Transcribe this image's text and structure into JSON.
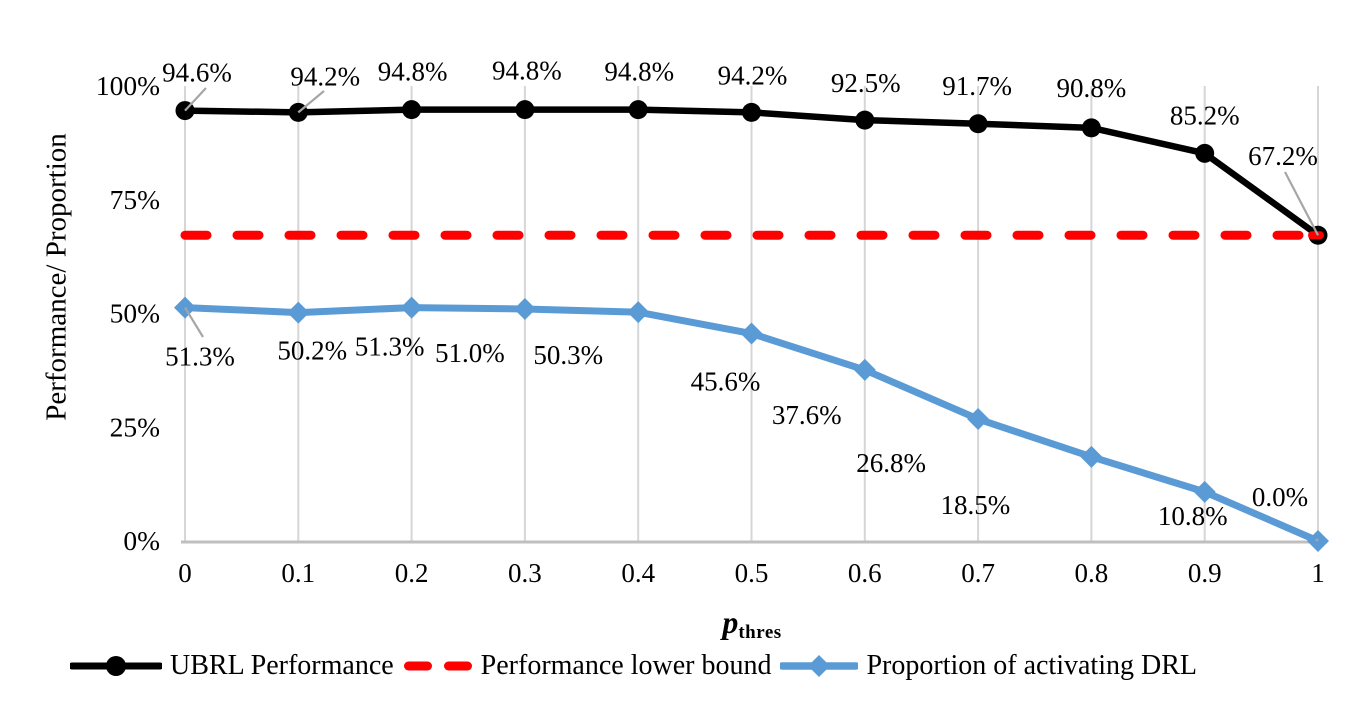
{
  "chart_data": {
    "type": "line",
    "title": "",
    "x": [
      0,
      0.1,
      0.2,
      0.3,
      0.4,
      0.5,
      0.6,
      0.7,
      0.8,
      0.9,
      1
    ],
    "x_tick_labels": [
      "0",
      "0.1",
      "0.2",
      "0.3",
      "0.4",
      "0.5",
      "0.6",
      "0.7",
      "0.8",
      "0.9",
      "1"
    ],
    "y_ticks": [
      0,
      25,
      50,
      75,
      100
    ],
    "y_tick_labels": [
      "0%",
      "25%",
      "50%",
      "75%",
      "100%"
    ],
    "ylim": [
      0,
      100
    ],
    "xlabel_main": "p",
    "xlabel_sub": "thres",
    "ylabel": "Performance/ Proportion",
    "grid": "vertical-only",
    "legend_position": "bottom",
    "series": [
      {
        "name": "UBRL Performance",
        "kind": "line",
        "color": "#000000",
        "marker": "circle",
        "values": [
          94.6,
          94.2,
          94.8,
          94.8,
          94.8,
          94.2,
          92.5,
          91.7,
          90.8,
          85.2,
          67.2
        ],
        "data_labels": [
          "94.6%",
          "94.2%",
          "94.8%",
          "94.8%",
          "94.8%",
          "94.2%",
          "92.5%",
          "91.7%",
          "90.8%",
          "85.2%",
          "67.2%"
        ]
      },
      {
        "name": "Performance lower bound",
        "kind": "hline",
        "color": "#FF0000",
        "style": "dashed",
        "value": 67.2
      },
      {
        "name": "Proportion of activating DRL",
        "kind": "line",
        "color": "#5B9BD5",
        "marker": "diamond",
        "values": [
          51.3,
          50.2,
          51.3,
          51.0,
          50.3,
          45.6,
          37.6,
          26.8,
          18.5,
          10.8,
          0.0
        ],
        "data_labels": [
          "51.3%",
          "50.2%",
          "51.3%",
          "51.0%",
          "50.3%",
          "45.6%",
          "37.6%",
          "26.8%",
          "18.5%",
          "10.8%",
          "0.0%"
        ]
      }
    ]
  },
  "axes": {
    "ylabel": "Performance/ Proportion",
    "xlabel_main": "p",
    "xlabel_sub": "thres"
  },
  "legend": {
    "items": [
      {
        "label": "UBRL Performance",
        "color": "#000000",
        "marker": "line-circle"
      },
      {
        "label": "Performance lower bound",
        "color": "#FF0000",
        "marker": "dashes"
      },
      {
        "label": "Proportion of activating DRL",
        "color": "#5B9BD5",
        "marker": "line-diamond"
      }
    ]
  },
  "colors": {
    "background": "#FFFFFF",
    "gridline": "#D6D6D6",
    "axis_line": "#BFBFBF",
    "leader_line": "#A6A6A6",
    "text": "#000000",
    "series_ubrl": "#000000",
    "series_lower_bound": "#FF0000",
    "series_proportion": "#5B9BD5"
  }
}
